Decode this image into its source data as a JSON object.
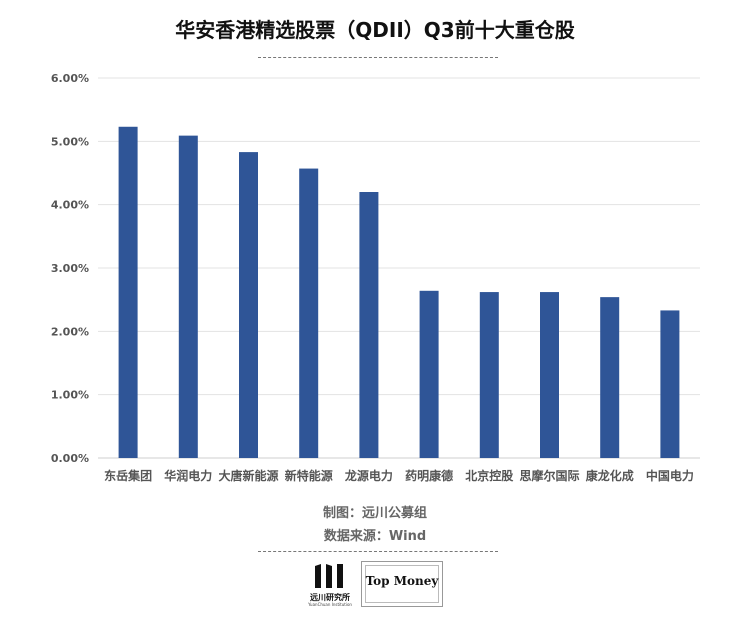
{
  "header": {
    "title": "华安香港精选股票（QDII）Q3前十大重仓股"
  },
  "chart_data": {
    "type": "bar",
    "title": "华安香港精选股票（QDII）Q3前十大重仓股",
    "categories": [
      "东岳集团",
      "华润电力",
      "大唐新能源",
      "新特能源",
      "龙源电力",
      "药明康德",
      "北京控股",
      "思摩尔国际",
      "康龙化成",
      "中国电力"
    ],
    "values": [
      5.23,
      5.09,
      4.83,
      4.57,
      4.2,
      2.64,
      2.62,
      2.62,
      2.54,
      2.33
    ],
    "ylim": [
      0,
      6
    ],
    "y_ticks": [
      "0.00%",
      "1.00%",
      "2.00%",
      "3.00%",
      "4.00%",
      "5.00%",
      "6.00%"
    ],
    "grid": true,
    "legend": "none",
    "bar_color": "#2F5597",
    "grid_color": "#E3E3E3"
  },
  "footer": {
    "made_by": "制图：远川公募组",
    "source": "数据来源：Wind"
  },
  "logos": {
    "yuanchuan_cn": "远川研究所",
    "yuanchuan_en": "YuanChuan Institution",
    "topmoney": "Top Money"
  }
}
